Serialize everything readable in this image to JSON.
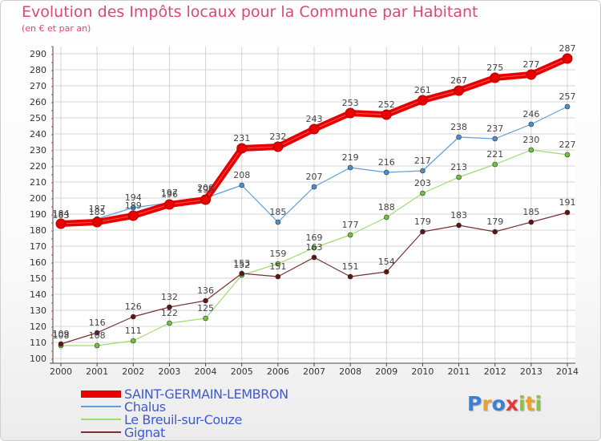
{
  "title": "Evolution des Impôts locaux pour la Commune par Habitant",
  "subtitle": "(en € et par an)",
  "logo": {
    "text": "Proxiti",
    "letters": [
      {
        "ch": "P",
        "color": "#3c7fd6"
      },
      {
        "ch": "r",
        "color": "#e9a22c"
      },
      {
        "ch": "o",
        "color": "#3c7fd6"
      },
      {
        "ch": "x",
        "color": "#e23a3a"
      },
      {
        "ch": "i",
        "color": "#8ac241"
      },
      {
        "ch": "t",
        "color": "#e9a22c"
      },
      {
        "ch": "i",
        "color": "#8ac241"
      }
    ]
  },
  "chart_data": {
    "type": "line",
    "title": "Evolution des Impôts locaux pour la Commune par Habitant",
    "subtitle": "(en € et par an)",
    "xlabel": "",
    "ylabel": "",
    "x": [
      2000,
      2001,
      2002,
      2003,
      2004,
      2005,
      2006,
      2007,
      2008,
      2009,
      2010,
      2011,
      2012,
      2013,
      2014
    ],
    "y_ticks": [
      100,
      110,
      120,
      130,
      140,
      150,
      160,
      170,
      180,
      190,
      200,
      210,
      220,
      230,
      240,
      250,
      260,
      270,
      280,
      290
    ],
    "ylim": [
      100,
      290
    ],
    "grid": true,
    "legend_position": "bottom-left",
    "series": [
      {
        "name": "SAINT-GERMAIN-LEMBRON",
        "color": "#e80000",
        "line_width": 8,
        "marker_color": "#e80000",
        "values": [
          184,
          185,
          189,
          196,
          199,
          231,
          232,
          243,
          253,
          252,
          261,
          267,
          275,
          277,
          287
        ]
      },
      {
        "name": "Chalus",
        "color": "#5e9fd8",
        "line_width": 1.2,
        "marker_color": "#4a8fd0",
        "values": [
          183,
          187,
          194,
          197,
          200,
          208,
          185,
          207,
          219,
          216,
          217,
          238,
          237,
          246,
          257
        ]
      },
      {
        "name": "Le Breuil-sur-Couze",
        "color": "#9fdc6f",
        "line_width": 1.2,
        "marker_color": "#6fc23a",
        "values": [
          108,
          108,
          111,
          122,
          125,
          152,
          159,
          169,
          177,
          188,
          203,
          213,
          221,
          230,
          227
        ]
      },
      {
        "name": "Gignat",
        "color": "#7a3030",
        "line_width": 1.2,
        "marker_color": "#5e1414",
        "values": [
          109,
          116,
          126,
          132,
          136,
          153,
          151,
          163,
          151,
          154,
          179,
          183,
          179,
          185,
          191
        ]
      }
    ]
  }
}
